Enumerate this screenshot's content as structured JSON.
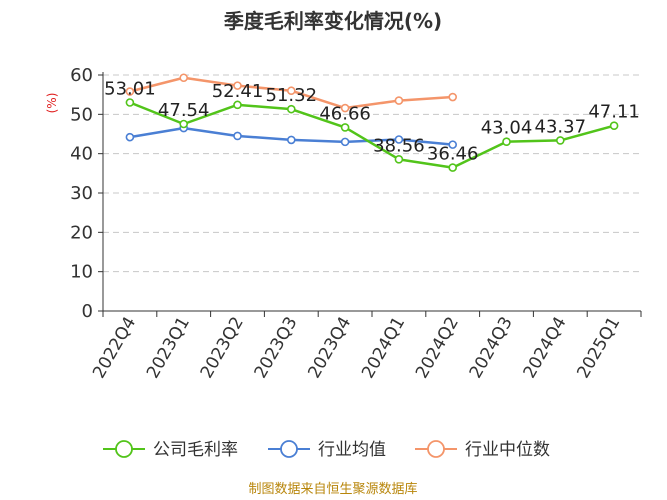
{
  "chart_data": {
    "type": "line",
    "title": "季度毛利率变化情况(%)",
    "ylabel": "(%)",
    "xlabel": "",
    "ylim": [
      0,
      60
    ],
    "yticks": [
      0,
      10,
      20,
      30,
      40,
      50,
      60
    ],
    "grid": true,
    "legend_position": "bottom",
    "categories": [
      "2022Q4",
      "2023Q1",
      "2023Q2",
      "2023Q3",
      "2023Q4",
      "2024Q1",
      "2024Q2",
      "2024Q3",
      "2024Q4",
      "2025Q1"
    ],
    "series": [
      {
        "name": "公司毛利率",
        "color": "#52c41a",
        "values": [
          53.01,
          47.54,
          52.41,
          51.32,
          46.66,
          38.56,
          36.46,
          43.04,
          43.37,
          47.11
        ],
        "labels": [
          "53.01",
          "47.54",
          "52.41",
          "51.32",
          "46.66",
          "38.56",
          "36.46",
          "43.04",
          "43.37",
          "47.11"
        ]
      },
      {
        "name": "行业均值",
        "color": "#4a7fd4",
        "values": [
          44.2,
          46.5,
          44.5,
          43.5,
          43.0,
          43.6,
          42.3,
          null,
          null,
          null
        ]
      },
      {
        "name": "行业中位数",
        "color": "#f4956a",
        "values": [
          55.8,
          59.3,
          57.3,
          56.0,
          51.6,
          53.5,
          54.4,
          null,
          null,
          null
        ]
      }
    ],
    "source": "制图数据来自恒生聚源数据库"
  }
}
